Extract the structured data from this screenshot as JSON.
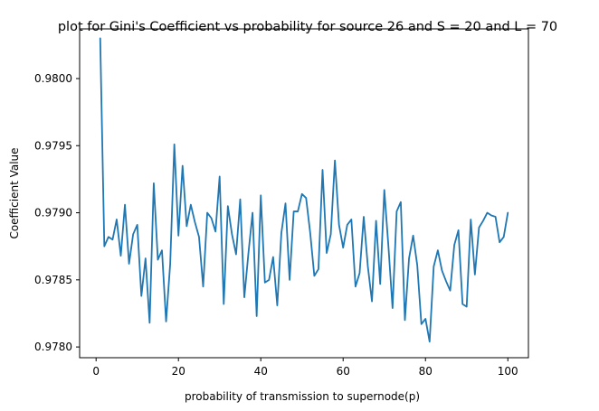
{
  "chart_data": {
    "type": "line",
    "title": "plot for Gini's Coefficient vs probability for source 26 and S = 20 and L = 70",
    "xlabel": "probability of transmission to supernode(p)",
    "ylabel": "Coefficient Value",
    "xlim": [
      -4,
      105
    ],
    "ylim": [
      0.97792,
      0.98037
    ],
    "x_ticks": [
      0,
      20,
      40,
      60,
      80,
      100
    ],
    "x_tick_labels": [
      "0",
      "20",
      "40",
      "60",
      "80",
      "100"
    ],
    "y_ticks": [
      0.978,
      0.9785,
      0.979,
      0.9795,
      0.98
    ],
    "y_tick_labels": [
      "0.9780",
      "0.9785",
      "0.9790",
      "0.9795",
      "0.9800"
    ],
    "grid": false,
    "colors": {
      "series": "#1f77b4"
    },
    "series": [
      {
        "x": [
          1,
          2,
          3,
          4,
          5,
          6,
          7,
          8,
          9,
          10,
          11,
          12,
          13,
          14,
          15,
          16,
          17,
          18,
          19,
          20,
          21,
          22,
          23,
          24,
          25,
          26,
          27,
          28,
          29,
          30,
          31,
          32,
          33,
          34,
          35,
          36,
          37,
          38,
          39,
          40,
          41,
          42,
          43,
          44,
          45,
          46,
          47,
          48,
          49,
          50,
          51,
          52,
          53,
          54,
          55,
          56,
          57,
          58,
          59,
          60,
          61,
          62,
          63,
          64,
          65,
          66,
          67,
          68,
          69,
          70,
          71,
          72,
          73,
          74,
          75,
          76,
          77,
          78,
          79,
          80,
          81,
          82,
          83,
          84,
          85,
          86,
          87,
          88,
          89,
          90,
          91,
          92,
          93,
          94,
          95,
          96,
          97,
          98,
          99,
          100
        ],
        "y": [
          0.9803,
          0.97875,
          0.97882,
          0.9788,
          0.97895,
          0.97868,
          0.97906,
          0.97862,
          0.97884,
          0.97891,
          0.97838,
          0.97866,
          0.97818,
          0.97922,
          0.97865,
          0.97872,
          0.97819,
          0.97862,
          0.97951,
          0.97883,
          0.97935,
          0.9789,
          0.97906,
          0.97893,
          0.97882,
          0.97845,
          0.979,
          0.97896,
          0.97886,
          0.97927,
          0.97832,
          0.97905,
          0.97884,
          0.97869,
          0.9791,
          0.97837,
          0.9787,
          0.979,
          0.97823,
          0.97913,
          0.97848,
          0.9785,
          0.97867,
          0.97831,
          0.97885,
          0.97907,
          0.9785,
          0.97901,
          0.97901,
          0.97914,
          0.97911,
          0.97885,
          0.97853,
          0.97858,
          0.97932,
          0.9787,
          0.97884,
          0.97939,
          0.97891,
          0.97874,
          0.97891,
          0.97895,
          0.97845,
          0.97855,
          0.97897,
          0.9786,
          0.97834,
          0.97894,
          0.97847,
          0.97917,
          0.97875,
          0.97829,
          0.97901,
          0.97908,
          0.9782,
          0.97866,
          0.97883,
          0.97861,
          0.97817,
          0.97821,
          0.97804,
          0.9786,
          0.97872,
          0.97857,
          0.97849,
          0.97842,
          0.97876,
          0.97887,
          0.97832,
          0.9783,
          0.97895,
          0.97854,
          0.97889,
          0.97894,
          0.979,
          0.97898,
          0.97897,
          0.97878,
          0.97882,
          0.979
        ]
      }
    ]
  }
}
